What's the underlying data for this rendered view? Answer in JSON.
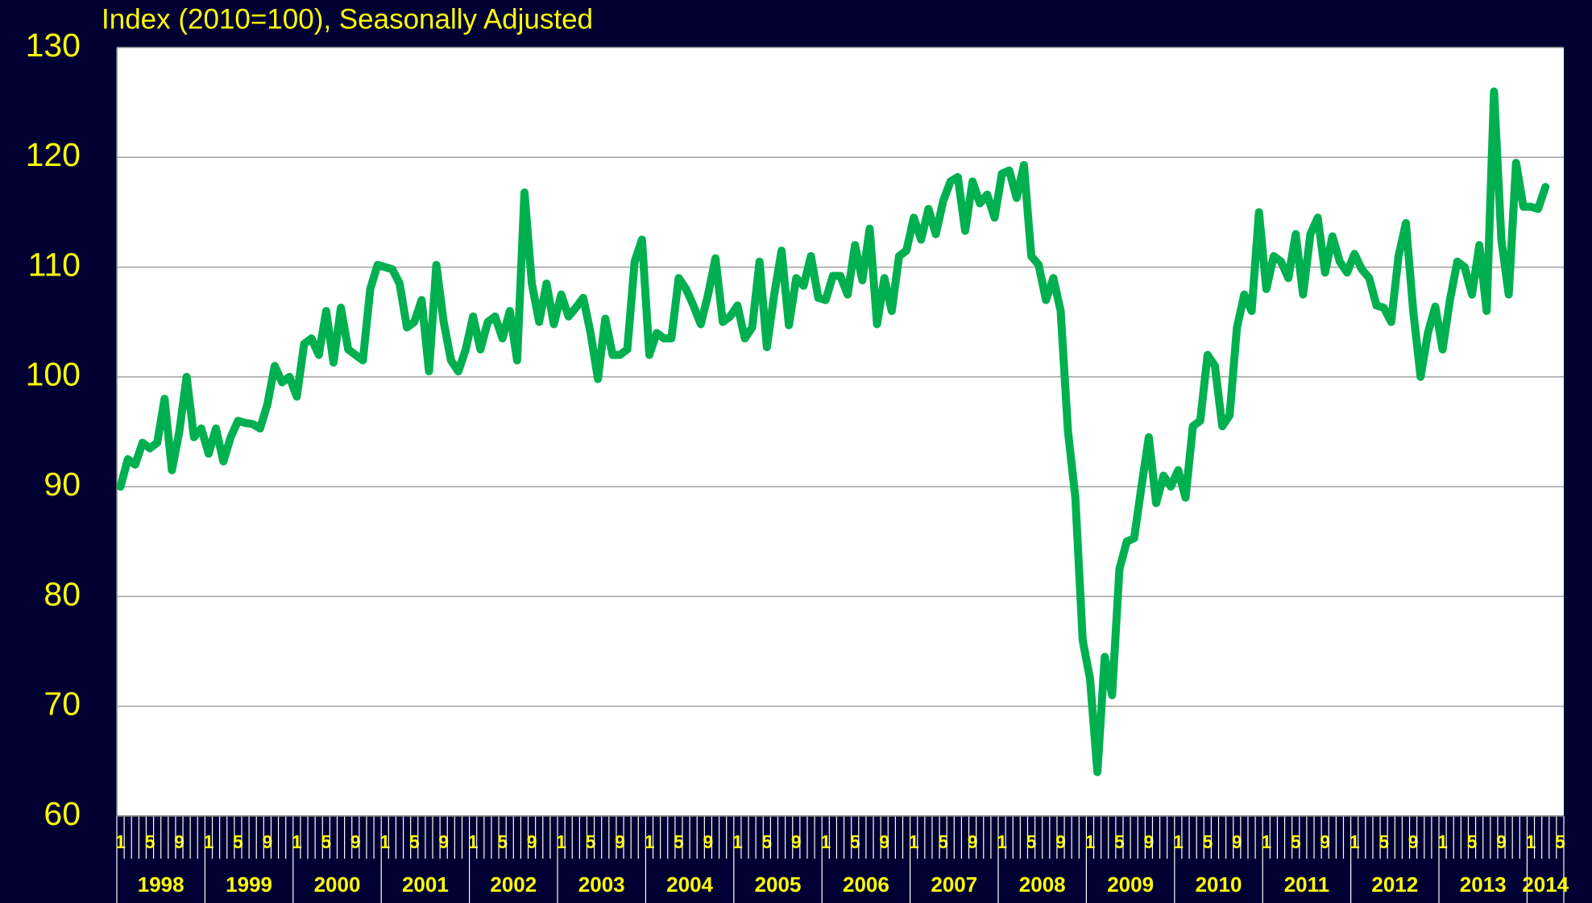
{
  "chart_data": {
    "type": "line",
    "title": "Index (2010=100), Seasonally Adjusted",
    "categories": [
      1,
      null,
      null,
      null,
      5,
      null,
      null,
      null,
      9,
      null,
      null,
      null,
      1,
      null,
      null,
      null,
      5,
      null,
      null,
      null,
      9,
      null,
      null,
      null,
      1,
      null,
      null,
      null,
      5,
      null,
      null,
      null,
      9,
      null,
      null,
      null,
      1,
      null,
      null,
      null,
      5,
      null,
      null,
      null,
      9,
      null,
      null,
      null,
      1,
      null,
      null,
      null,
      5,
      null,
      null,
      null,
      9,
      null,
      null,
      null,
      1,
      null,
      null,
      null,
      5,
      null,
      null,
      null,
      9,
      null,
      null,
      null,
      1,
      null,
      null,
      null,
      5,
      null,
      null,
      null,
      9,
      null,
      null,
      null,
      1,
      null,
      null,
      null,
      5,
      null,
      null,
      null,
      9,
      null,
      null,
      null,
      1,
      null,
      null,
      null,
      5,
      null,
      null,
      null,
      9,
      null,
      null,
      null,
      1,
      null,
      null,
      null,
      5,
      null,
      null,
      null,
      9,
      null,
      null,
      null,
      1,
      null,
      null,
      null,
      5,
      null,
      null,
      null,
      9,
      null,
      null,
      null,
      1,
      null,
      null,
      null,
      5,
      null,
      null,
      null,
      9,
      null,
      null,
      null,
      1,
      null,
      null,
      null,
      5,
      null,
      null,
      null,
      9,
      null,
      null,
      null,
      1,
      null,
      null,
      null,
      5,
      null,
      null,
      null,
      9,
      null,
      null,
      null,
      1,
      null,
      null,
      null,
      5,
      null,
      null,
      null,
      9,
      null,
      null,
      null,
      1,
      null,
      null,
      null,
      5,
      null,
      null,
      null,
      9,
      null,
      null,
      null,
      1,
      null,
      null,
      null,
      5
    ],
    "years": [
      1998,
      1999,
      2000,
      2001,
      2002,
      2003,
      2004,
      2005,
      2006,
      2007,
      2008,
      2009,
      2010,
      2011,
      2012,
      2013,
      2014
    ],
    "series": [
      {
        "color": "#00b050",
        "values": [
          90,
          92.5,
          92,
          94,
          93.5,
          94,
          98,
          91.5,
          95,
          100,
          94.5,
          95.3,
          93,
          95.3,
          92.3,
          94.5,
          96,
          95.8,
          95.7,
          95.3,
          97.5,
          101,
          99.5,
          100,
          98.2,
          103,
          103.5,
          102,
          106,
          101.3,
          106.3,
          102.5,
          102,
          101.5,
          108,
          110.2,
          110,
          109.8,
          108.5,
          104.5,
          105,
          107,
          100.5,
          110.2,
          105,
          101.5,
          100.5,
          102.5,
          105.5,
          102.5,
          105,
          105.5,
          103.5,
          106,
          101.5,
          116.8,
          108.5,
          105,
          108.5,
          104.8,
          107.5,
          105.5,
          106.3,
          107.2,
          104,
          99.8,
          105.3,
          102,
          102,
          102.5,
          110.5,
          112.5,
          102,
          104,
          103.5,
          103.5,
          109,
          108,
          106.5,
          104.8,
          107.5,
          110.8,
          105,
          105.5,
          106.5,
          103.5,
          104.5,
          110.5,
          102.7,
          107.5,
          111.5,
          104.7,
          109,
          108.3,
          111,
          107.2,
          107,
          109.2,
          109.2,
          107.5,
          112,
          108.8,
          113.5,
          104.8,
          109,
          106,
          111,
          111.5,
          114.5,
          112.5,
          115.3,
          113,
          116,
          117.8,
          118.2,
          113.3,
          117.8,
          115.8,
          116.6,
          114.5,
          118.5,
          118.8,
          116.3,
          119.3,
          111,
          110.2,
          107,
          109,
          106,
          95,
          89,
          76,
          72.5,
          64,
          74.5,
          71,
          82.5,
          85,
          85.3,
          90,
          94.5,
          88.5,
          91,
          90,
          91.5,
          89,
          95.5,
          96,
          102,
          101,
          95.5,
          96.5,
          104.5,
          107.5,
          106,
          115,
          108,
          111,
          110.5,
          109,
          113,
          107.5,
          113,
          114.5,
          109.5,
          112.8,
          110.5,
          109.5,
          111.2,
          109.8,
          109,
          106.5,
          106.3,
          105,
          111,
          114,
          106,
          100,
          104,
          106.4,
          102.5,
          107,
          110.5,
          110,
          107.5,
          112,
          106,
          126,
          112.5,
          107.5,
          119.5,
          115.5,
          115.5,
          115.3,
          117.3,
          null,
          null
        ]
      }
    ],
    "ylim": [
      60,
      130
    ],
    "yticks": [
      60,
      70,
      80,
      90,
      100,
      110,
      120,
      130
    ],
    "grid": true
  }
}
